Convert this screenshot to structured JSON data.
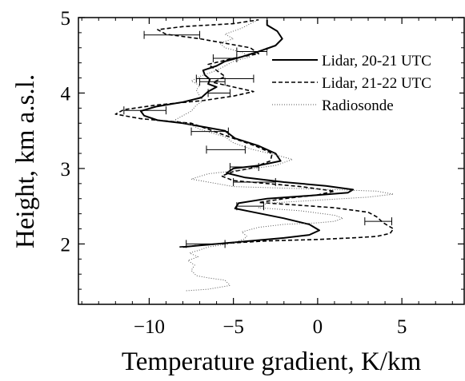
{
  "chart_data": {
    "type": "line",
    "title": "",
    "xlabel": "Temperature gradient, K/km",
    "ylabel": "Height, km a.s.l.",
    "xlim": [
      -14.2,
      8.7
    ],
    "ylim": [
      1.2,
      5.0
    ],
    "x_ticks": [
      -10,
      -5,
      0,
      5
    ],
    "x_tick_labels": [
      "−10",
      "−5",
      "0",
      "5"
    ],
    "y_ticks": [
      2,
      3,
      4,
      5
    ],
    "y_tick_labels": [
      "2",
      "3",
      "4",
      "5"
    ],
    "x_minor_step": 1,
    "y_minor_step": 0.2,
    "grid": false,
    "legend_position": "top-right",
    "series": [
      {
        "name": "Lidar, 20-21 UTC",
        "style": "solid",
        "color": "#000000",
        "points": [
          [
            -8.0,
            1.96
          ],
          [
            -7.0,
            1.98
          ],
          [
            -5.0,
            2.02
          ],
          [
            -2.0,
            2.08
          ],
          [
            -0.5,
            2.12
          ],
          [
            0.1,
            2.18
          ],
          [
            -0.5,
            2.26
          ],
          [
            -2.0,
            2.34
          ],
          [
            -3.8,
            2.42
          ],
          [
            -4.9,
            2.47
          ],
          [
            -4.7,
            2.54
          ],
          [
            -3.0,
            2.6
          ],
          [
            -0.5,
            2.64
          ],
          [
            1.8,
            2.68
          ],
          [
            2.1,
            2.72
          ],
          [
            0.5,
            2.77
          ],
          [
            -2.0,
            2.82
          ],
          [
            -4.3,
            2.88
          ],
          [
            -5.4,
            2.94
          ],
          [
            -5.0,
            3.0
          ],
          [
            -3.5,
            3.04
          ],
          [
            -2.2,
            3.1
          ],
          [
            -2.5,
            3.2
          ],
          [
            -3.5,
            3.3
          ],
          [
            -4.9,
            3.4
          ],
          [
            -5.5,
            3.5
          ],
          [
            -7.0,
            3.56
          ],
          [
            -8.0,
            3.6
          ],
          [
            -9.5,
            3.64
          ],
          [
            -10.3,
            3.7
          ],
          [
            -10.5,
            3.76
          ],
          [
            -9.6,
            3.82
          ],
          [
            -8.0,
            3.88
          ],
          [
            -6.9,
            3.94
          ],
          [
            -6.5,
            4.02
          ],
          [
            -6.0,
            4.08
          ],
          [
            -6.5,
            4.12
          ],
          [
            -6.4,
            4.18
          ],
          [
            -6.7,
            4.24
          ],
          [
            -6.8,
            4.3
          ],
          [
            -6.0,
            4.36
          ],
          [
            -5.5,
            4.42
          ],
          [
            -4.5,
            4.48
          ],
          [
            -3.5,
            4.55
          ],
          [
            -2.5,
            4.63
          ],
          [
            -2.1,
            4.72
          ],
          [
            -2.4,
            4.82
          ],
          [
            -3.0,
            4.9
          ],
          [
            -3.0,
            4.97
          ]
        ]
      },
      {
        "name": "Lidar, 21-22 UTC",
        "style": "dashed",
        "color": "#000000",
        "points": [
          [
            -8.2,
            1.96
          ],
          [
            -6.0,
            2.0
          ],
          [
            -3.0,
            2.04
          ],
          [
            0.0,
            2.06
          ],
          [
            2.0,
            2.08
          ],
          [
            3.5,
            2.1
          ],
          [
            4.3,
            2.14
          ],
          [
            4.5,
            2.2
          ],
          [
            3.9,
            2.28
          ],
          [
            3.5,
            2.36
          ],
          [
            3.0,
            2.42
          ],
          [
            1.0,
            2.48
          ],
          [
            -1.5,
            2.52
          ],
          [
            -3.5,
            2.55
          ],
          [
            -2.0,
            2.6
          ],
          [
            0.0,
            2.65
          ],
          [
            1.0,
            2.7
          ],
          [
            -1.0,
            2.76
          ],
          [
            -3.0,
            2.8
          ],
          [
            -5.0,
            2.84
          ],
          [
            -5.7,
            2.9
          ],
          [
            -5.0,
            2.96
          ],
          [
            -4.0,
            3.0
          ],
          [
            -2.8,
            3.1
          ],
          [
            -2.7,
            3.2
          ],
          [
            -3.7,
            3.3
          ],
          [
            -5.0,
            3.4
          ],
          [
            -6.5,
            3.52
          ],
          [
            -7.5,
            3.6
          ],
          [
            -10.5,
            3.66
          ],
          [
            -12.0,
            3.72
          ],
          [
            -11.5,
            3.78
          ],
          [
            -9.6,
            3.84
          ],
          [
            -6.8,
            3.9
          ],
          [
            -5.0,
            3.96
          ],
          [
            -3.8,
            4.02
          ],
          [
            -5.0,
            4.08
          ],
          [
            -6.2,
            4.14
          ],
          [
            -5.5,
            4.22
          ],
          [
            -6.0,
            4.3
          ],
          [
            -6.5,
            4.38
          ],
          [
            -5.0,
            4.46
          ],
          [
            -3.5,
            4.52
          ],
          [
            -4.0,
            4.6
          ],
          [
            -5.5,
            4.66
          ],
          [
            -7.0,
            4.72
          ],
          [
            -9.0,
            4.78
          ],
          [
            -9.5,
            4.84
          ],
          [
            -8.0,
            4.88
          ],
          [
            -5.0,
            4.92
          ],
          [
            -3.5,
            4.97
          ]
        ]
      },
      {
        "name": "Radiosonde",
        "style": "dotted",
        "color": "#555555",
        "points": [
          [
            -7.8,
            1.38
          ],
          [
            -6.5,
            1.4
          ],
          [
            -5.2,
            1.45
          ],
          [
            -5.5,
            1.52
          ],
          [
            -6.5,
            1.55
          ],
          [
            -7.2,
            1.58
          ],
          [
            -7.5,
            1.65
          ],
          [
            -7.3,
            1.72
          ],
          [
            -7.7,
            1.78
          ],
          [
            -7.1,
            1.83
          ],
          [
            -7.6,
            1.88
          ],
          [
            -7.0,
            1.92
          ],
          [
            -6.5,
            1.96
          ],
          [
            -5.3,
            2.0
          ],
          [
            -4.4,
            2.06
          ],
          [
            -4.2,
            2.1
          ],
          [
            -4.5,
            2.16
          ],
          [
            -3.5,
            2.22
          ],
          [
            -2.0,
            2.26
          ],
          [
            0.0,
            2.28
          ],
          [
            1.0,
            2.3
          ],
          [
            1.5,
            2.34
          ],
          [
            1.0,
            2.38
          ],
          [
            -1.0,
            2.44
          ],
          [
            -3.5,
            2.48
          ],
          [
            -3.0,
            2.54
          ],
          [
            0.0,
            2.58
          ],
          [
            3.0,
            2.62
          ],
          [
            4.5,
            2.66
          ],
          [
            3.5,
            2.7
          ],
          [
            1.0,
            2.72
          ],
          [
            -2.0,
            2.74
          ],
          [
            -5.0,
            2.76
          ],
          [
            -7.5,
            2.86
          ],
          [
            -6.5,
            2.93
          ],
          [
            -4.5,
            2.98
          ],
          [
            -2.5,
            3.04
          ],
          [
            -1.5,
            3.12
          ],
          [
            -2.5,
            3.18
          ],
          [
            -4.0,
            3.26
          ],
          [
            -5.0,
            3.34
          ],
          [
            -5.5,
            3.42
          ],
          [
            -7.0,
            3.52
          ],
          [
            -7.5,
            3.58
          ],
          [
            -8.5,
            3.64
          ],
          [
            -8.0,
            3.7
          ],
          [
            -7.5,
            3.76
          ],
          [
            -7.2,
            3.84
          ],
          [
            -6.8,
            3.9
          ],
          [
            -7.0,
            3.96
          ],
          [
            -7.2,
            4.04
          ],
          [
            -7.0,
            4.1
          ],
          [
            -7.5,
            4.16
          ],
          [
            -7.0,
            4.22
          ],
          [
            -6.0,
            4.3
          ],
          [
            -5.5,
            4.36
          ],
          [
            -5.0,
            4.42
          ],
          [
            -4.0,
            4.48
          ],
          [
            -4.5,
            4.54
          ],
          [
            -5.5,
            4.6
          ],
          [
            -5.8,
            4.66
          ],
          [
            -5.0,
            4.72
          ],
          [
            -5.5,
            4.78
          ],
          [
            -4.5,
            4.86
          ],
          [
            -4.0,
            4.92
          ],
          [
            -3.5,
            4.97
          ]
        ]
      }
    ],
    "error_bars": [
      {
        "y": 4.77,
        "x_low": -10.3,
        "x_high": -7.0
      },
      {
        "y": 4.55,
        "x_low": -4.8,
        "x_high": -3.0
      },
      {
        "y": 4.46,
        "x_low": -6.2,
        "x_high": -4.8
      },
      {
        "y": 4.19,
        "x_low": -7.2,
        "x_high": -3.8
      },
      {
        "y": 4.15,
        "x_low": -7.0,
        "x_high": -5.5
      },
      {
        "y": 4.0,
        "x_low": -6.5,
        "x_high": -5.2
      },
      {
        "y": 3.77,
        "x_low": -11.5,
        "x_high": -9.0
      },
      {
        "y": 3.49,
        "x_low": -7.5,
        "x_high": -5.3
      },
      {
        "y": 3.25,
        "x_low": -6.6,
        "x_high": -4.3
      },
      {
        "y": 3.02,
        "x_low": -5.2,
        "x_high": -3.5
      },
      {
        "y": 2.82,
        "x_low": -5.0,
        "x_high": -2.5
      },
      {
        "y": 2.5,
        "x_low": -4.8,
        "x_high": -3.2
      },
      {
        "y": 2.3,
        "x_low": 2.8,
        "x_high": 4.4
      },
      {
        "y": 2.0,
        "x_low": -7.8,
        "x_high": -5.5
      }
    ]
  }
}
